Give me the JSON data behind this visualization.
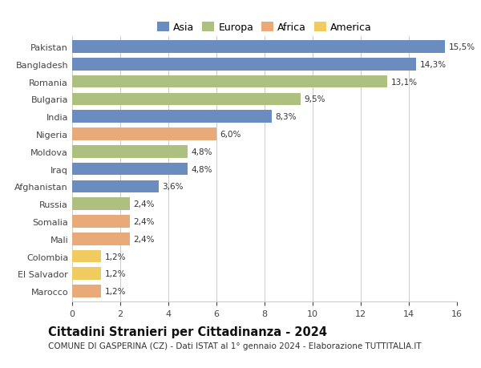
{
  "categories": [
    "Pakistan",
    "Bangladesh",
    "Romania",
    "Bulgaria",
    "India",
    "Nigeria",
    "Moldova",
    "Iraq",
    "Afghanistan",
    "Russia",
    "Somalia",
    "Mali",
    "Colombia",
    "El Salvador",
    "Marocco"
  ],
  "values": [
    15.5,
    14.3,
    13.1,
    9.5,
    8.3,
    6.0,
    4.8,
    4.8,
    3.6,
    2.4,
    2.4,
    2.4,
    1.2,
    1.2,
    1.2
  ],
  "labels": [
    "15,5%",
    "14,3%",
    "13,1%",
    "9,5%",
    "8,3%",
    "6,0%",
    "4,8%",
    "4,8%",
    "3,6%",
    "2,4%",
    "2,4%",
    "2,4%",
    "1,2%",
    "1,2%",
    "1,2%"
  ],
  "continents": [
    "Asia",
    "Asia",
    "Europa",
    "Europa",
    "Asia",
    "Africa",
    "Europa",
    "Asia",
    "Asia",
    "Europa",
    "Africa",
    "Africa",
    "America",
    "America",
    "Africa"
  ],
  "continent_colors": {
    "Asia": "#6b8cbf",
    "Europa": "#adc080",
    "Africa": "#e8aa78",
    "America": "#f0cc60"
  },
  "legend_order": [
    "Asia",
    "Europa",
    "Africa",
    "America"
  ],
  "title": "Cittadini Stranieri per Cittadinanza - 2024",
  "subtitle": "COMUNE DI GASPERINA (CZ) - Dati ISTAT al 1° gennaio 2024 - Elaborazione TUTTITALIA.IT",
  "xlim": [
    0,
    16
  ],
  "xticks": [
    0,
    2,
    4,
    6,
    8,
    10,
    12,
    14,
    16
  ],
  "background_color": "#ffffff",
  "grid_color": "#cccccc",
  "title_fontsize": 10.5,
  "subtitle_fontsize": 7.5,
  "label_fontsize": 7.5,
  "tick_fontsize": 8,
  "bar_height": 0.72,
  "legend_fontsize": 9
}
